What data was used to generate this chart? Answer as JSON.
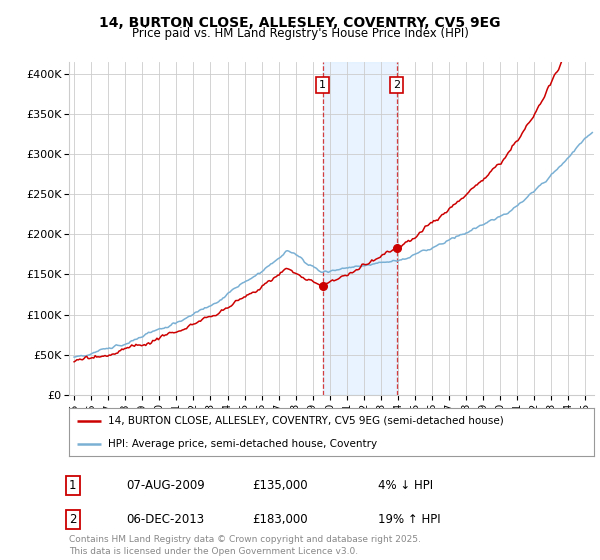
{
  "title1": "14, BURTON CLOSE, ALLESLEY, COVENTRY, CV5 9EG",
  "title2": "Price paid vs. HM Land Registry's House Price Index (HPI)",
  "ylabel_ticks": [
    "£0",
    "£50K",
    "£100K",
    "£150K",
    "£200K",
    "£250K",
    "£300K",
    "£350K",
    "£400K"
  ],
  "ylabel_values": [
    0,
    50000,
    100000,
    150000,
    200000,
    250000,
    300000,
    350000,
    400000
  ],
  "ylim": [
    0,
    415000
  ],
  "xlim_start": 1994.7,
  "xlim_end": 2025.5,
  "transaction1_date": 2009.58,
  "transaction1_price": 135000,
  "transaction2_date": 2013.92,
  "transaction2_price": 183000,
  "shaded_color": "#ddeeff",
  "line_color_property": "#cc0000",
  "line_color_hpi": "#7ab0d4",
  "legend_label1": "14, BURTON CLOSE, ALLESLEY, COVENTRY, CV5 9EG (semi-detached house)",
  "legend_label2": "HPI: Average price, semi-detached house, Coventry",
  "annotation1_num": "1",
  "annotation1_date": "07-AUG-2009",
  "annotation1_price": "£135,000",
  "annotation1_change": "4% ↓ HPI",
  "annotation2_num": "2",
  "annotation2_date": "06-DEC-2013",
  "annotation2_price": "£183,000",
  "annotation2_change": "19% ↑ HPI",
  "footer": "Contains HM Land Registry data © Crown copyright and database right 2025.\nThis data is licensed under the Open Government Licence v3.0.",
  "background_color": "#ffffff",
  "grid_color": "#cccccc",
  "xticks": [
    1995,
    1996,
    1997,
    1998,
    1999,
    2000,
    2001,
    2002,
    2003,
    2004,
    2005,
    2006,
    2007,
    2008,
    2009,
    2010,
    2011,
    2012,
    2013,
    2014,
    2015,
    2016,
    2017,
    2018,
    2019,
    2020,
    2021,
    2022,
    2023,
    2024,
    2025
  ]
}
